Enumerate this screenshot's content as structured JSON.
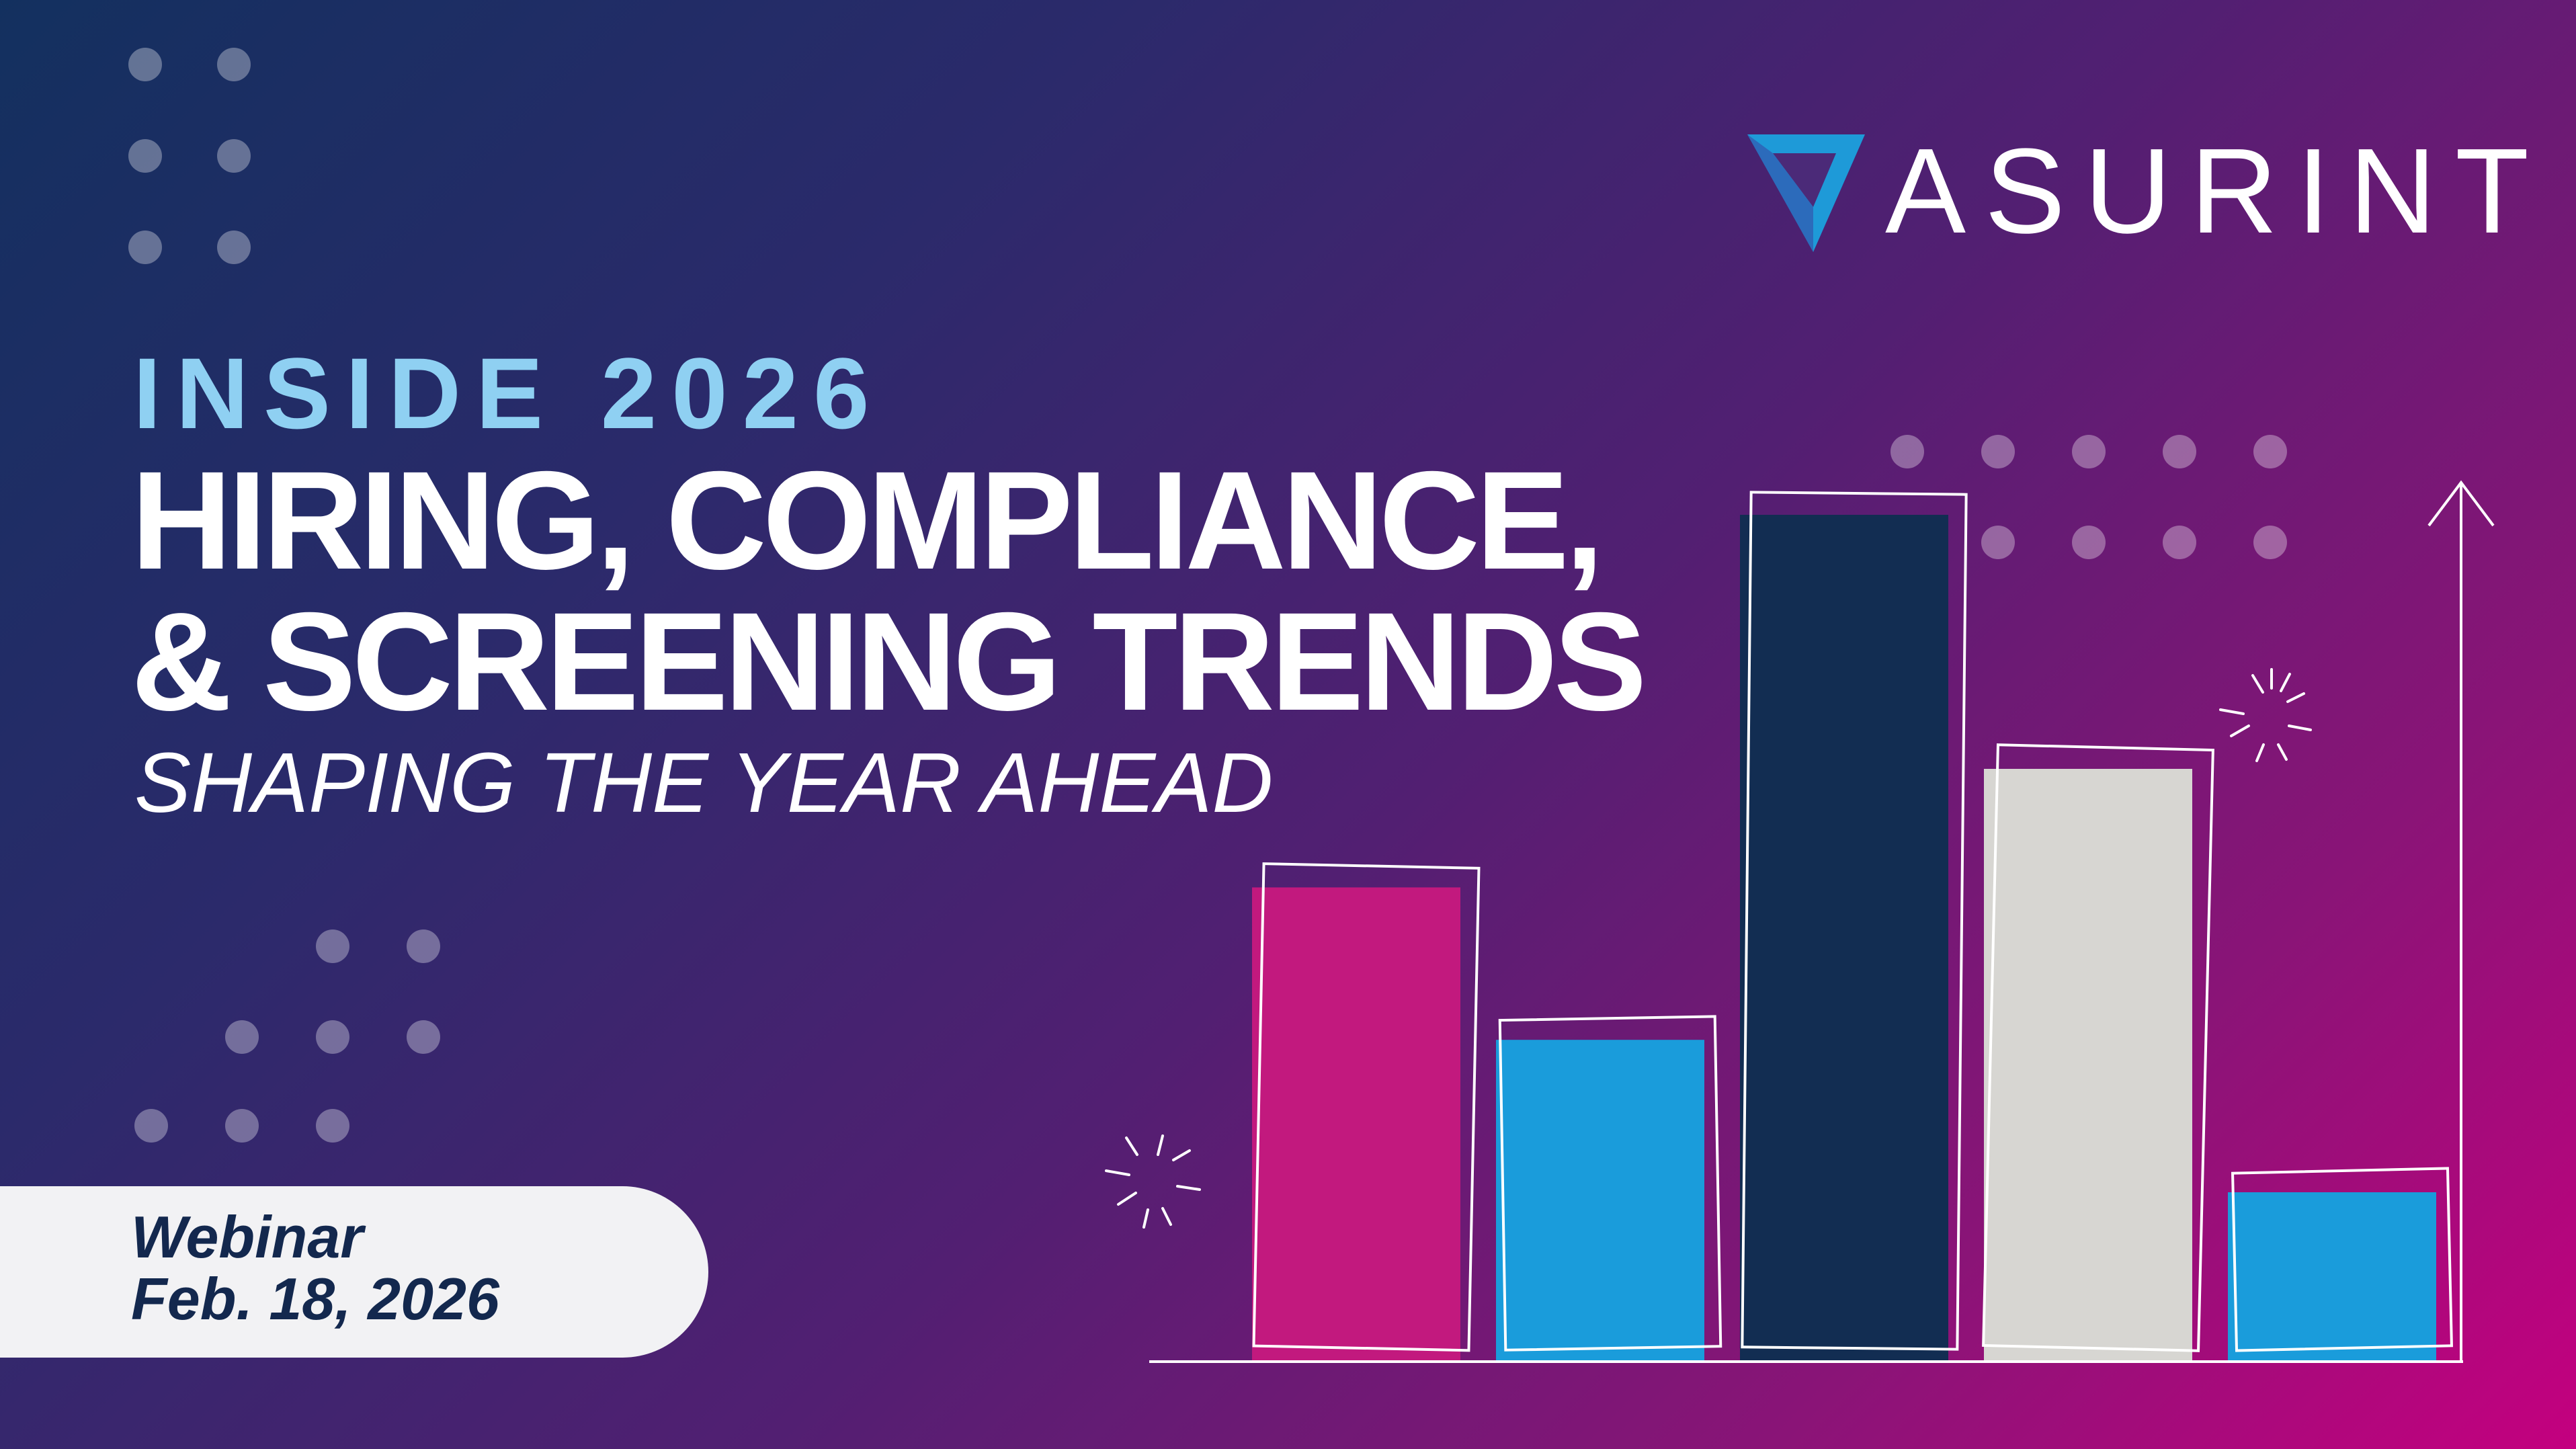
{
  "brand": {
    "name": "ASURINT",
    "colors": {
      "magenta": "#c2197e",
      "blue": "#1a9cdb",
      "navy": "#122d52",
      "light_gray": "#d7d6d2",
      "kicker_blue": "#8fd0f2",
      "logo_blue": "#1e9ad8"
    }
  },
  "title": {
    "kicker": "INSIDE 2026",
    "line1": "HIRING, COMPLIANCE,",
    "line2": "& SCREENING TRENDS",
    "subtitle": "SHAPING THE YEAR AHEAD"
  },
  "event": {
    "type": "Webinar",
    "date": "Feb. 18, 2026"
  },
  "decor": {
    "icons": [
      "dot-grid-icon",
      "sparkle-icon",
      "arrow-up-icon"
    ]
  },
  "illustration": {
    "bars": [
      {
        "color": "#c2197e",
        "level": 0.56
      },
      {
        "color": "#1a9cdb",
        "level": 0.38
      },
      {
        "color": "#122d52",
        "level": 1.0
      },
      {
        "color": "#d7d6d2",
        "level": 0.7
      },
      {
        "color": "#1a9cdb",
        "level": 0.2
      }
    ]
  }
}
